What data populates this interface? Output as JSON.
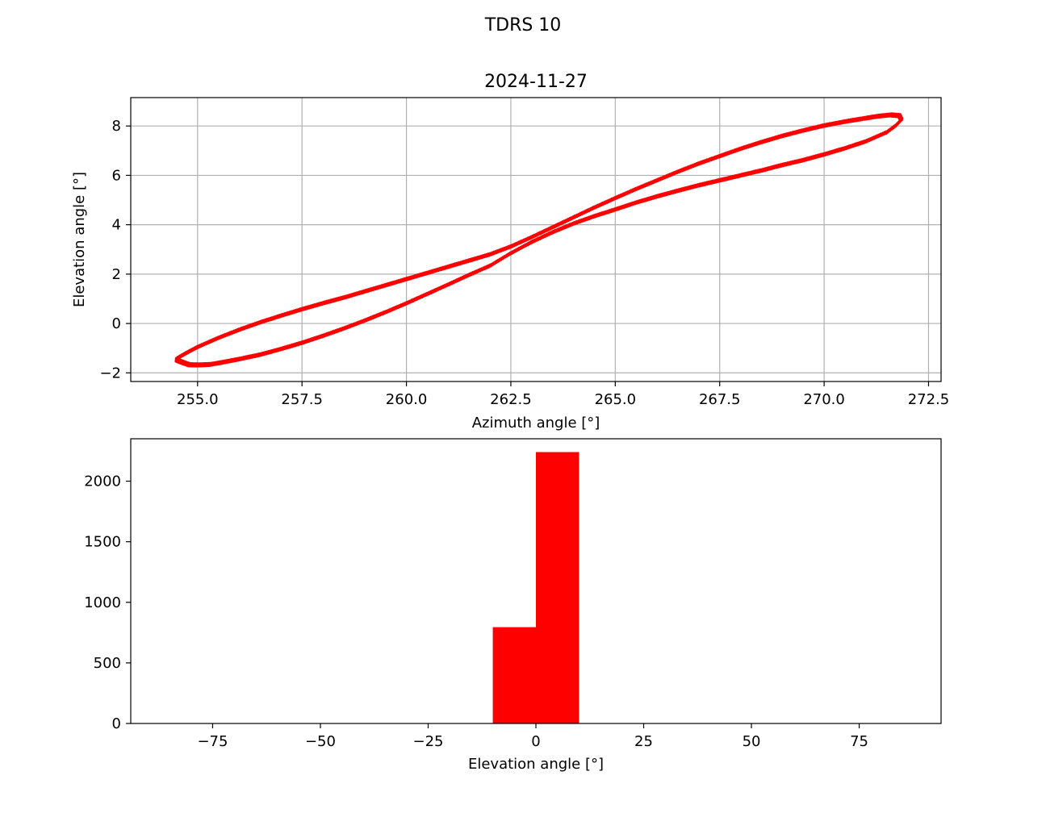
{
  "figure": {
    "suptitle": "TDRS 10"
  },
  "chart_data": [
    {
      "type": "scatter",
      "title": "2024-11-27",
      "xlabel": "Azimuth angle [°]",
      "ylabel": "Elevation angle [°]",
      "xlim": [
        253.4,
        272.8
      ],
      "ylim": [
        -2.35,
        9.15
      ],
      "xticks": [
        255.0,
        257.5,
        260.0,
        262.5,
        265.0,
        267.5,
        270.0,
        272.5
      ],
      "xtick_labels": [
        "255.0",
        "257.5",
        "260.0",
        "262.5",
        "265.0",
        "267.5",
        "270.0",
        "272.5"
      ],
      "yticks": [
        -2,
        0,
        2,
        4,
        6,
        8
      ],
      "ytick_labels": [
        "−2",
        "0",
        "2",
        "4",
        "6",
        "8"
      ],
      "grid": true,
      "marker_color": "#ff0000",
      "series": [
        {
          "description_points": "daily figure-eight track",
          "points": [
            [
              254.5,
              -1.48
            ],
            [
              254.6,
              -1.55
            ],
            [
              254.8,
              -1.67
            ],
            [
              255.0,
              -1.68
            ],
            [
              255.3,
              -1.66
            ],
            [
              255.6,
              -1.57
            ],
            [
              256.0,
              -1.44
            ],
            [
              256.5,
              -1.26
            ],
            [
              257.0,
              -1.03
            ],
            [
              257.5,
              -0.78
            ],
            [
              258.0,
              -0.5
            ],
            [
              258.5,
              -0.2
            ],
            [
              259.0,
              0.12
            ],
            [
              259.5,
              0.46
            ],
            [
              260.0,
              0.82
            ],
            [
              260.5,
              1.2
            ],
            [
              261.0,
              1.58
            ],
            [
              261.5,
              1.97
            ],
            [
              262.0,
              2.34
            ],
            [
              262.5,
              2.85
            ],
            [
              263.0,
              3.3
            ],
            [
              263.5,
              3.7
            ],
            [
              264.0,
              4.05
            ],
            [
              264.5,
              4.35
            ],
            [
              265.0,
              4.62
            ],
            [
              265.5,
              4.9
            ],
            [
              266.0,
              5.15
            ],
            [
              266.5,
              5.38
            ],
            [
              267.0,
              5.6
            ],
            [
              267.5,
              5.8
            ],
            [
              268.0,
              6.0
            ],
            [
              268.5,
              6.2
            ],
            [
              269.0,
              6.42
            ],
            [
              269.5,
              6.62
            ],
            [
              270.0,
              6.85
            ],
            [
              270.5,
              7.1
            ],
            [
              271.0,
              7.38
            ],
            [
              271.5,
              7.75
            ],
            [
              271.7,
              8.0
            ],
            [
              271.85,
              8.25
            ],
            [
              271.8,
              8.42
            ],
            [
              271.6,
              8.45
            ],
            [
              271.3,
              8.4
            ],
            [
              271.0,
              8.32
            ],
            [
              270.5,
              8.18
            ],
            [
              270.0,
              8.02
            ],
            [
              269.5,
              7.82
            ],
            [
              269.0,
              7.6
            ],
            [
              268.5,
              7.35
            ],
            [
              268.0,
              7.08
            ],
            [
              267.5,
              6.78
            ],
            [
              267.0,
              6.48
            ],
            [
              266.5,
              6.15
            ],
            [
              266.0,
              5.8
            ],
            [
              265.5,
              5.45
            ],
            [
              265.0,
              5.08
            ],
            [
              264.5,
              4.7
            ],
            [
              264.0,
              4.3
            ],
            [
              263.5,
              3.9
            ],
            [
              263.0,
              3.5
            ],
            [
              262.5,
              3.12
            ],
            [
              262.0,
              2.8
            ],
            [
              261.5,
              2.55
            ],
            [
              261.0,
              2.3
            ],
            [
              260.5,
              2.05
            ],
            [
              260.0,
              1.8
            ],
            [
              259.5,
              1.55
            ],
            [
              259.0,
              1.3
            ],
            [
              258.5,
              1.05
            ],
            [
              258.0,
              0.82
            ],
            [
              257.5,
              0.58
            ],
            [
              257.0,
              0.32
            ],
            [
              256.5,
              0.05
            ],
            [
              256.0,
              -0.25
            ],
            [
              255.5,
              -0.58
            ],
            [
              255.0,
              -0.95
            ],
            [
              254.7,
              -1.22
            ],
            [
              254.5,
              -1.42
            ]
          ]
        }
      ]
    },
    {
      "type": "bar",
      "title": "",
      "xlabel": "Elevation angle [°]",
      "ylabel": "",
      "xlim": [
        -94,
        94
      ],
      "ylim": [
        0,
        2350
      ],
      "xticks": [
        -75,
        -50,
        -25,
        0,
        25,
        50,
        75
      ],
      "xtick_labels": [
        "−75",
        "−50",
        "−25",
        "0",
        "25",
        "50",
        "75"
      ],
      "yticks": [
        0,
        500,
        1000,
        1500,
        2000
      ],
      "ytick_labels": [
        "0",
        "500",
        "1000",
        "1500",
        "2000"
      ],
      "grid": false,
      "bar_color": "#ff0000",
      "bins": [
        {
          "x0": -10,
          "x1": 0,
          "value": 795
        },
        {
          "x0": 0,
          "x1": 10,
          "value": 2240
        }
      ]
    }
  ]
}
